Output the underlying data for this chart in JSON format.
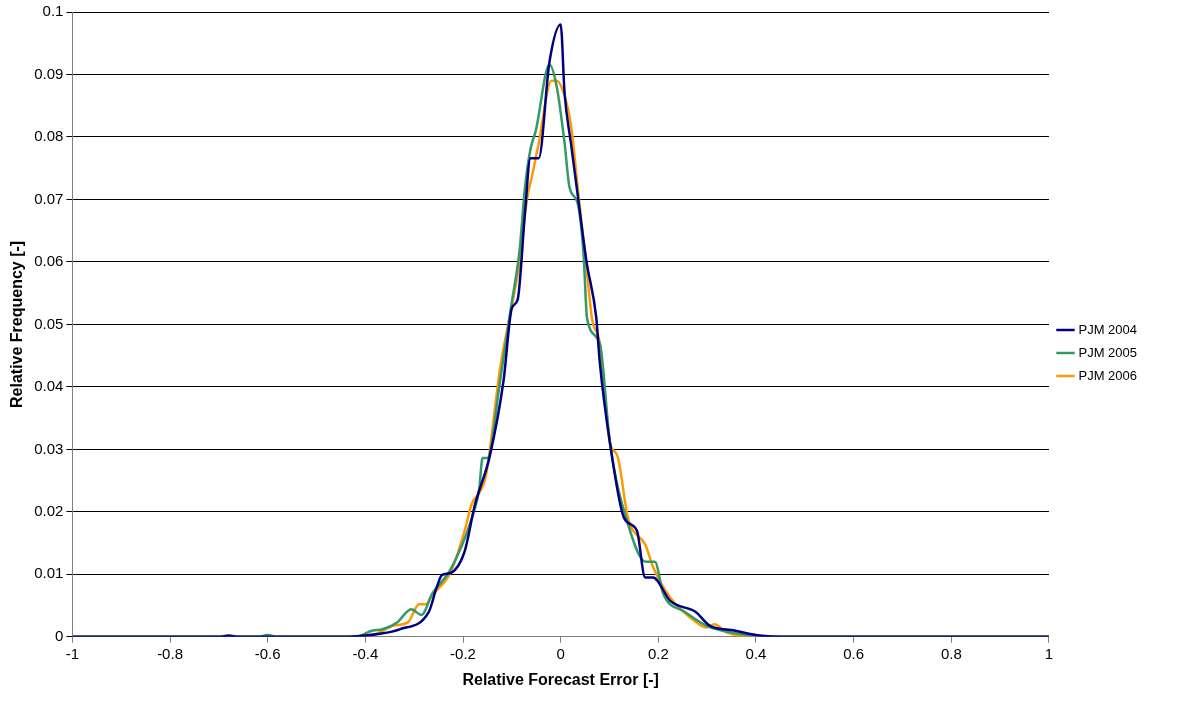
{
  "chart_data": {
    "type": "line",
    "xlabel": "Relative Forecast Error [-]",
    "ylabel": "Relative Frequency [-]",
    "xlim": [
      -1,
      1
    ],
    "ylim": [
      0,
      0.1
    ],
    "xticks": [
      -1,
      -0.8,
      -0.6,
      -0.4,
      -0.2,
      0,
      0.2,
      0.4,
      0.6,
      0.8,
      1
    ],
    "yticks": [
      0,
      0.01,
      0.02,
      0.03,
      0.04,
      0.05,
      0.06,
      0.07,
      0.08,
      0.09,
      0.1
    ],
    "grid": "y",
    "legend": "right",
    "marker": "none",
    "line_style": "solid",
    "series": [
      {
        "name": "PJM 2004",
        "color": "#000080",
        "x": [
          -1,
          -0.7,
          -0.68,
          -0.66,
          -0.45,
          -0.37,
          -0.33,
          -0.27,
          -0.254,
          -0.243,
          -0.226,
          -0.197,
          -0.176,
          -0.145,
          -0.117,
          -0.1,
          -0.088,
          -0.073,
          -0.062,
          -0.045,
          -0.023,
          0,
          0.008,
          0.021,
          0.036,
          0.053,
          0.073,
          0.08,
          0.101,
          0.13,
          0.156,
          0.173,
          0.189,
          0.225,
          0.276,
          0.305,
          0.356,
          0.4,
          0.45,
          1
        ],
        "values": [
          0,
          0,
          0.0002,
          0,
          0,
          0.0005,
          0.0012,
          0.004,
          0.0079,
          0.0099,
          0.0102,
          0.0136,
          0.021,
          0.029,
          0.041,
          0.0526,
          0.054,
          0.068,
          0.0766,
          0.0766,
          0.092,
          0.098,
          0.087,
          0.079,
          0.07,
          0.06,
          0.051,
          0.044,
          0.031,
          0.019,
          0.017,
          0.0095,
          0.0095,
          0.0057,
          0.004,
          0.0018,
          0.001,
          0.0003,
          0,
          0
        ]
      },
      {
        "name": "PJM 2005",
        "color": "#339966",
        "x": [
          -1,
          -0.62,
          -0.6,
          -0.58,
          -0.42,
          -0.385,
          -0.365,
          -0.335,
          -0.306,
          -0.285,
          -0.263,
          -0.226,
          -0.182,
          -0.167,
          -0.16,
          -0.15,
          -0.124,
          -0.102,
          -0.084,
          -0.073,
          -0.062,
          -0.051,
          -0.023,
          -0.008,
          0.008,
          0.018,
          0.036,
          0.047,
          0.054,
          0.08,
          0.101,
          0.138,
          0.174,
          0.193,
          0.21,
          0.254,
          0.298,
          0.33,
          0.38,
          0.42,
          1
        ],
        "values": [
          0,
          0,
          0.0003,
          0,
          0,
          0.001,
          0.0012,
          0.0023,
          0.0044,
          0.0035,
          0.0069,
          0.0107,
          0.019,
          0.0236,
          0.0286,
          0.0286,
          0.041,
          0.0526,
          0.062,
          0.072,
          0.078,
          0.081,
          0.0916,
          0.088,
          0.079,
          0.072,
          0.069,
          0.061,
          0.051,
          0.047,
          0.031,
          0.018,
          0.012,
          0.012,
          0.0069,
          0.004,
          0.0018,
          0.001,
          0.0003,
          0,
          0
        ]
      },
      {
        "name": "PJM 2006",
        "color": "#ff9900",
        "x": [
          -1,
          -0.45,
          -0.38,
          -0.342,
          -0.313,
          -0.29,
          -0.276,
          -0.263,
          -0.226,
          -0.197,
          -0.182,
          -0.167,
          -0.153,
          -0.124,
          -0.1,
          -0.084,
          -0.069,
          -0.058,
          -0.045,
          -0.019,
          -0.008,
          0.008,
          0.021,
          0.036,
          0.053,
          0.064,
          0.08,
          0.101,
          0.116,
          0.138,
          0.174,
          0.189,
          0.225,
          0.27,
          0.298,
          0.315,
          0.34,
          0.4,
          1
        ],
        "values": [
          0,
          0,
          0.0004,
          0.0018,
          0.0023,
          0.0052,
          0.0052,
          0.0067,
          0.0102,
          0.0169,
          0.0213,
          0.023,
          0.0258,
          0.043,
          0.053,
          0.06,
          0.07,
          0.074,
          0.079,
          0.089,
          0.089,
          0.0866,
          0.082,
          0.071,
          0.059,
          0.051,
          0.047,
          0.031,
          0.029,
          0.019,
          0.0146,
          0.0112,
          0.0062,
          0.0028,
          0.0015,
          0.002,
          0.0007,
          0,
          0
        ]
      }
    ]
  }
}
